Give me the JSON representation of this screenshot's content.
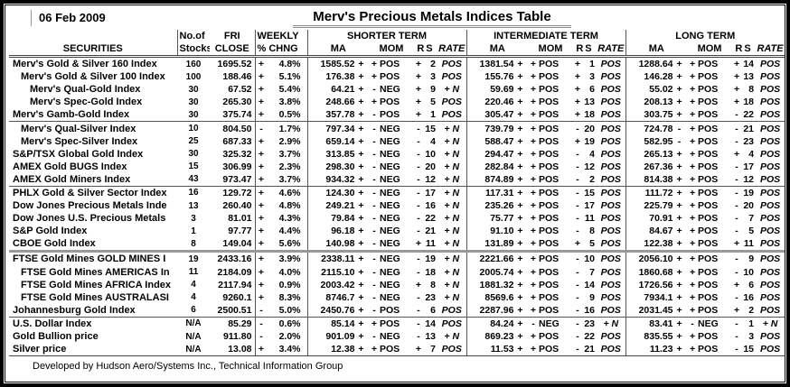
{
  "report": {
    "date": "06 Feb 2009",
    "title": "Merv's Precious Metals Indices Table",
    "footer": "Developed by Hudson Aero/Systems Inc.,  Technical Information Group"
  },
  "colors": {
    "frame": "#000000",
    "grid_line": "#555555",
    "thick_separator": "#999999"
  },
  "table": {
    "headers": {
      "securities": "SECURITIES",
      "no_of": "No.of",
      "stocks": "Stocks",
      "fri": "FRI",
      "close": "CLOSE",
      "weekly": "WEEKLY",
      "pct_chng": "% CHNG",
      "shorter": "SHORTER TERM",
      "intermediate": "INTERMEDIATE TERM",
      "long": "LONG TERM",
      "ma": "MA",
      "mom": "MOM",
      "rs": "RS",
      "rate": "RATE"
    },
    "rows": [
      {
        "name": "Merv's Gold & Silver 160 Index",
        "ind": 0,
        "stocks": "160",
        "close": "1695.52",
        "cs": "+",
        "c": "4.8%",
        "st": {
          "ma": "1585.52",
          "mas": "+",
          "moms": "+",
          "mom": "POS",
          "rss": "+",
          "rs": "2",
          "rate": "POS"
        },
        "it": {
          "ma": "1381.54",
          "mas": "+",
          "moms": "+",
          "mom": "POS",
          "rss": "+",
          "rs": "1",
          "rate": "POS"
        },
        "lt": {
          "ma": "1288.64",
          "mas": "+",
          "moms": "+",
          "mom": "POS",
          "rss": "+",
          "rs": "14",
          "rate": "POS"
        }
      },
      {
        "name": "Merv's Gold & Silver 100 Index",
        "ind": 1,
        "stocks": "100",
        "close": "188.46",
        "cs": "+",
        "c": "5.1%",
        "st": {
          "ma": "176.38",
          "mas": "+",
          "moms": "+",
          "mom": "POS",
          "rss": "+",
          "rs": "3",
          "rate": "POS"
        },
        "it": {
          "ma": "155.76",
          "mas": "+",
          "moms": "+",
          "mom": "POS",
          "rss": "+",
          "rs": "3",
          "rate": "POS"
        },
        "lt": {
          "ma": "146.28",
          "mas": "+",
          "moms": "+",
          "mom": "POS",
          "rss": "+",
          "rs": "13",
          "rate": "POS"
        }
      },
      {
        "name": "Merv's Qual-Gold Index",
        "ind": 2,
        "stocks": "30",
        "close": "67.52",
        "cs": "+",
        "c": "5.4%",
        "st": {
          "ma": "64.21",
          "mas": "+",
          "moms": "-",
          "mom": "NEG",
          "rss": "+",
          "rs": "9",
          "rate": "+ N"
        },
        "it": {
          "ma": "59.69",
          "mas": "+",
          "moms": "+",
          "mom": "POS",
          "rss": "+",
          "rs": "6",
          "rate": "POS"
        },
        "lt": {
          "ma": "55.02",
          "mas": "+",
          "moms": "+",
          "mom": "POS",
          "rss": "+",
          "rs": "8",
          "rate": "POS"
        }
      },
      {
        "name": "Merv's Spec-Gold Index",
        "ind": 2,
        "stocks": "30",
        "close": "265.30",
        "cs": "+",
        "c": "3.8%",
        "st": {
          "ma": "248.66",
          "mas": "+",
          "moms": "+",
          "mom": "POS",
          "rss": "+",
          "rs": "5",
          "rate": "POS"
        },
        "it": {
          "ma": "220.46",
          "mas": "+",
          "moms": "+",
          "mom": "POS",
          "rss": "+",
          "rs": "13",
          "rate": "POS"
        },
        "lt": {
          "ma": "208.13",
          "mas": "+",
          "moms": "+",
          "mom": "POS",
          "rss": "+",
          "rs": "18",
          "rate": "POS"
        }
      },
      {
        "name": "Merv's Gamb-Gold Index",
        "ind": 0,
        "stocks": "30",
        "close": "375.74",
        "cs": "+",
        "c": "0.5%",
        "st": {
          "ma": "357.78",
          "mas": "+",
          "moms": "-",
          "mom": "POS",
          "rss": "+",
          "rs": "1",
          "rate": "POS"
        },
        "it": {
          "ma": "305.47",
          "mas": "+",
          "moms": "+",
          "mom": "POS",
          "rss": "+",
          "rs": "18",
          "rate": "POS"
        },
        "lt": {
          "ma": "303.75",
          "mas": "+",
          "moms": "+",
          "mom": "POS",
          "rss": "-",
          "rs": "22",
          "rate": "POS"
        }
      },
      {
        "name": "Merv's Qual-Silver Index",
        "ind": 1,
        "stocks": "10",
        "close": "804.50",
        "cs": "-",
        "c": "1.7%",
        "st": {
          "ma": "797.34",
          "mas": "+",
          "moms": "-",
          "mom": "NEG",
          "rss": "-",
          "rs": "15",
          "rate": "+ N"
        },
        "it": {
          "ma": "739.79",
          "mas": "+",
          "moms": "+",
          "mom": "POS",
          "rss": "-",
          "rs": "20",
          "rate": "POS"
        },
        "lt": {
          "ma": "724.78",
          "mas": "-",
          "moms": "+",
          "mom": "POS",
          "rss": "-",
          "rs": "21",
          "rate": "POS"
        }
      },
      {
        "name": "Merv's Spec-Silver Index",
        "ind": 1,
        "stocks": "25",
        "close": "687.33",
        "cs": "+",
        "c": "2.9%",
        "st": {
          "ma": "659.14",
          "mas": "+",
          "moms": "-",
          "mom": "NEG",
          "rss": "-",
          "rs": "4",
          "rate": "+ N"
        },
        "it": {
          "ma": "588.47",
          "mas": "+",
          "moms": "+",
          "mom": "POS",
          "rss": "+",
          "rs": "19",
          "rate": "POS"
        },
        "lt": {
          "ma": "582.95",
          "mas": "-",
          "moms": "+",
          "mom": "POS",
          "rss": "-",
          "rs": "23",
          "rate": "POS"
        }
      },
      {
        "name": "S&P/TSX Global Gold Index",
        "ind": 0,
        "stocks": "30",
        "close": "325.32",
        "cs": "+",
        "c": "3.7%",
        "st": {
          "ma": "313.85",
          "mas": "+",
          "moms": "-",
          "mom": "NEG",
          "rss": "-",
          "rs": "10",
          "rate": "+ N"
        },
        "it": {
          "ma": "294.47",
          "mas": "+",
          "moms": "+",
          "mom": "POS",
          "rss": "-",
          "rs": "4",
          "rate": "POS"
        },
        "lt": {
          "ma": "265.13",
          "mas": "+",
          "moms": "+",
          "mom": "POS",
          "rss": "+",
          "rs": "4",
          "rate": "POS"
        }
      },
      {
        "name": "AMEX Gold BUGS Index",
        "ind": 0,
        "stocks": "15",
        "close": "306.99",
        "cs": "+",
        "c": "2.3%",
        "st": {
          "ma": "298.30",
          "mas": "+",
          "moms": "-",
          "mom": "NEG",
          "rss": "-",
          "rs": "20",
          "rate": "+ N"
        },
        "it": {
          "ma": "282.84",
          "mas": "+",
          "moms": "+",
          "mom": "POS",
          "rss": "-",
          "rs": "12",
          "rate": "POS"
        },
        "lt": {
          "ma": "267.36",
          "mas": "+",
          "moms": "+",
          "mom": "POS",
          "rss": "-",
          "rs": "17",
          "rate": "POS"
        }
      },
      {
        "name": "AMEX Gold Miners Index",
        "ind": 0,
        "stocks": "43",
        "close": "973.47",
        "cs": "+",
        "c": "3.7%",
        "st": {
          "ma": "934.32",
          "mas": "+",
          "moms": "-",
          "mom": "NEG",
          "rss": "-",
          "rs": "12",
          "rate": "+ N"
        },
        "it": {
          "ma": "874.89",
          "mas": "+",
          "moms": "+",
          "mom": "POS",
          "rss": "-",
          "rs": "2",
          "rate": "POS"
        },
        "lt": {
          "ma": "814.38",
          "mas": "+",
          "moms": "+",
          "mom": "POS",
          "rss": "-",
          "rs": "12",
          "rate": "POS"
        }
      },
      {
        "name": "PHLX Gold & Silver Sector Index",
        "ind": 0,
        "stocks": "16",
        "close": "129.72",
        "cs": "+",
        "c": "4.6%",
        "st": {
          "ma": "124.30",
          "mas": "+",
          "moms": "-",
          "mom": "NEG",
          "rss": "-",
          "rs": "17",
          "rate": "+ N"
        },
        "it": {
          "ma": "117.31",
          "mas": "+",
          "moms": "+",
          "mom": "POS",
          "rss": "-",
          "rs": "15",
          "rate": "POS"
        },
        "lt": {
          "ma": "111.72",
          "mas": "+",
          "moms": "+",
          "mom": "POS",
          "rss": "-",
          "rs": "19",
          "rate": "POS"
        }
      },
      {
        "name": "Dow Jones Precious Metals Inde",
        "ind": 0,
        "stocks": "13",
        "close": "260.40",
        "cs": "+",
        "c": "4.8%",
        "st": {
          "ma": "249.21",
          "mas": "+",
          "moms": "-",
          "mom": "NEG",
          "rss": "-",
          "rs": "16",
          "rate": "+ N"
        },
        "it": {
          "ma": "235.26",
          "mas": "+",
          "moms": "+",
          "mom": "POS",
          "rss": "-",
          "rs": "17",
          "rate": "POS"
        },
        "lt": {
          "ma": "225.79",
          "mas": "+",
          "moms": "+",
          "mom": "POS",
          "rss": "-",
          "rs": "20",
          "rate": "POS"
        }
      },
      {
        "name": "Dow Jones U.S. Precious Metals",
        "ind": 0,
        "stocks": "3",
        "close": "81.01",
        "cs": "+",
        "c": "4.3%",
        "st": {
          "ma": "79.84",
          "mas": "+",
          "moms": "-",
          "mom": "NEG",
          "rss": "-",
          "rs": "22",
          "rate": "+ N"
        },
        "it": {
          "ma": "75.77",
          "mas": "+",
          "moms": "+",
          "mom": "POS",
          "rss": "-",
          "rs": "11",
          "rate": "POS"
        },
        "lt": {
          "ma": "70.91",
          "mas": "+",
          "moms": "+",
          "mom": "POS",
          "rss": "-",
          "rs": "7",
          "rate": "POS"
        }
      },
      {
        "name": "S&P Gold Index",
        "ind": 0,
        "stocks": "1",
        "close": "97.77",
        "cs": "+",
        "c": "4.4%",
        "st": {
          "ma": "96.18",
          "mas": "+",
          "moms": "-",
          "mom": "NEG",
          "rss": "-",
          "rs": "21",
          "rate": "+ N"
        },
        "it": {
          "ma": "91.10",
          "mas": "+",
          "moms": "+",
          "mom": "POS",
          "rss": "-",
          "rs": "8",
          "rate": "POS"
        },
        "lt": {
          "ma": "84.67",
          "mas": "+",
          "moms": "+",
          "mom": "POS",
          "rss": "-",
          "rs": "5",
          "rate": "POS"
        }
      },
      {
        "name": "CBOE Gold Index",
        "ind": 0,
        "stocks": "8",
        "close": "149.04",
        "cs": "+",
        "c": "5.6%",
        "st": {
          "ma": "140.98",
          "mas": "+",
          "moms": "-",
          "mom": "NEG",
          "rss": "+",
          "rs": "11",
          "rate": "+ N"
        },
        "it": {
          "ma": "131.89",
          "mas": "+",
          "moms": "+",
          "mom": "POS",
          "rss": "+",
          "rs": "5",
          "rate": "POS"
        },
        "lt": {
          "ma": "122.38",
          "mas": "+",
          "moms": "+",
          "mom": "POS",
          "rss": "+",
          "rs": "11",
          "rate": "POS"
        }
      },
      {
        "name": "FTSE Gold Mines GOLD MINES I",
        "ind": 0,
        "stocks": "19",
        "close": "2433.16",
        "cs": "+",
        "c": "3.9%",
        "st": {
          "ma": "2338.11",
          "mas": "+",
          "moms": "-",
          "mom": "NEG",
          "rss": "-",
          "rs": "19",
          "rate": "+ N"
        },
        "it": {
          "ma": "2221.66",
          "mas": "+",
          "moms": "+",
          "mom": "POS",
          "rss": "-",
          "rs": "10",
          "rate": "POS"
        },
        "lt": {
          "ma": "2056.10",
          "mas": "+",
          "moms": "+",
          "mom": "POS",
          "rss": "-",
          "rs": "9",
          "rate": "POS"
        }
      },
      {
        "name": "FTSE Gold Mines AMERICAS In",
        "ind": 1,
        "stocks": "11",
        "close": "2184.09",
        "cs": "+",
        "c": "4.0%",
        "st": {
          "ma": "2115.10",
          "mas": "+",
          "moms": "-",
          "mom": "NEG",
          "rss": "-",
          "rs": "18",
          "rate": "+ N"
        },
        "it": {
          "ma": "2005.74",
          "mas": "+",
          "moms": "+",
          "mom": "POS",
          "rss": "-",
          "rs": "7",
          "rate": "POS"
        },
        "lt": {
          "ma": "1860.68",
          "mas": "+",
          "moms": "+",
          "mom": "POS",
          "rss": "-",
          "rs": "10",
          "rate": "POS"
        }
      },
      {
        "name": "FTSE Gold Mines AFRICA Index",
        "ind": 1,
        "stocks": "4",
        "close": "2117.94",
        "cs": "+",
        "c": "0.9%",
        "st": {
          "ma": "2003.42",
          "mas": "+",
          "moms": "-",
          "mom": "NEG",
          "rss": "+",
          "rs": "8",
          "rate": "+ N"
        },
        "it": {
          "ma": "1881.32",
          "mas": "+",
          "moms": "+",
          "mom": "POS",
          "rss": "-",
          "rs": "14",
          "rate": "POS"
        },
        "lt": {
          "ma": "1726.56",
          "mas": "+",
          "moms": "+",
          "mom": "POS",
          "rss": "+",
          "rs": "6",
          "rate": "POS"
        }
      },
      {
        "name": "FTSE Gold Mines AUSTRALASI",
        "ind": 1,
        "stocks": "4",
        "close": "9260.1",
        "cs": "+",
        "c": "8.3%",
        "st": {
          "ma": "8746.7",
          "mas": "+",
          "moms": "-",
          "mom": "NEG",
          "rss": "-",
          "rs": "23",
          "rate": "+ N"
        },
        "it": {
          "ma": "8569.6",
          "mas": "+",
          "moms": "+",
          "mom": "POS",
          "rss": "-",
          "rs": "9",
          "rate": "POS"
        },
        "lt": {
          "ma": "7934.1",
          "mas": "+",
          "moms": "+",
          "mom": "POS",
          "rss": "-",
          "rs": "16",
          "rate": "POS"
        }
      },
      {
        "name": "Johannesburg Gold Index",
        "ind": 0,
        "stocks": "6",
        "close": "2500.51",
        "cs": "-",
        "c": "5.0%",
        "st": {
          "ma": "2450.76",
          "mas": "+",
          "moms": "-",
          "mom": "POS",
          "rss": "-",
          "rs": "6",
          "rate": "POS"
        },
        "it": {
          "ma": "2287.96",
          "mas": "+",
          "moms": "+",
          "mom": "POS",
          "rss": "-",
          "rs": "16",
          "rate": "POS"
        },
        "lt": {
          "ma": "2031.45",
          "mas": "+",
          "moms": "+",
          "mom": "POS",
          "rss": "+",
          "rs": "2",
          "rate": "POS"
        }
      },
      {
        "name": "U.S. Dollar Index",
        "ind": 0,
        "stocks": "N/A",
        "close": "85.29",
        "cs": "-",
        "c": "0.6%",
        "st": {
          "ma": "85.14",
          "mas": "+",
          "moms": "+",
          "mom": "POS",
          "rss": "-",
          "rs": "14",
          "rate": "POS"
        },
        "it": {
          "ma": "84.24",
          "mas": "+",
          "moms": "-",
          "mom": "NEG",
          "rss": "-",
          "rs": "23",
          "rate": "+ N"
        },
        "lt": {
          "ma": "83.41",
          "mas": "+",
          "moms": "-",
          "mom": "NEG",
          "rss": "-",
          "rs": "1",
          "rate": "+ N"
        }
      },
      {
        "name": "Gold Bullion price",
        "ind": 0,
        "stocks": "N/A",
        "close": "911.80",
        "cs": "-",
        "c": "2.0%",
        "st": {
          "ma": "901.09",
          "mas": "+",
          "moms": "-",
          "mom": "NEG",
          "rss": "-",
          "rs": "13",
          "rate": "+ N"
        },
        "it": {
          "ma": "869.23",
          "mas": "+",
          "moms": "+",
          "mom": "POS",
          "rss": "-",
          "rs": "22",
          "rate": "POS"
        },
        "lt": {
          "ma": "835.55",
          "mas": "+",
          "moms": "+",
          "mom": "POS",
          "rss": "-",
          "rs": "3",
          "rate": "POS"
        }
      },
      {
        "name": "Silver price",
        "ind": 0,
        "stocks": "N/A",
        "close": "13.08",
        "cs": "+",
        "c": "3.4%",
        "st": {
          "ma": "12.38",
          "mas": "+",
          "moms": "+",
          "mom": "POS",
          "rss": "+",
          "rs": "7",
          "rate": "POS"
        },
        "it": {
          "ma": "11.53",
          "mas": "+",
          "moms": "+",
          "mom": "POS",
          "rss": "-",
          "rs": "21",
          "rate": "POS"
        },
        "lt": {
          "ma": "11.23",
          "mas": "+",
          "moms": "+",
          "mom": "POS",
          "rss": "-",
          "rs": "15",
          "rate": "POS"
        }
      }
    ]
  }
}
